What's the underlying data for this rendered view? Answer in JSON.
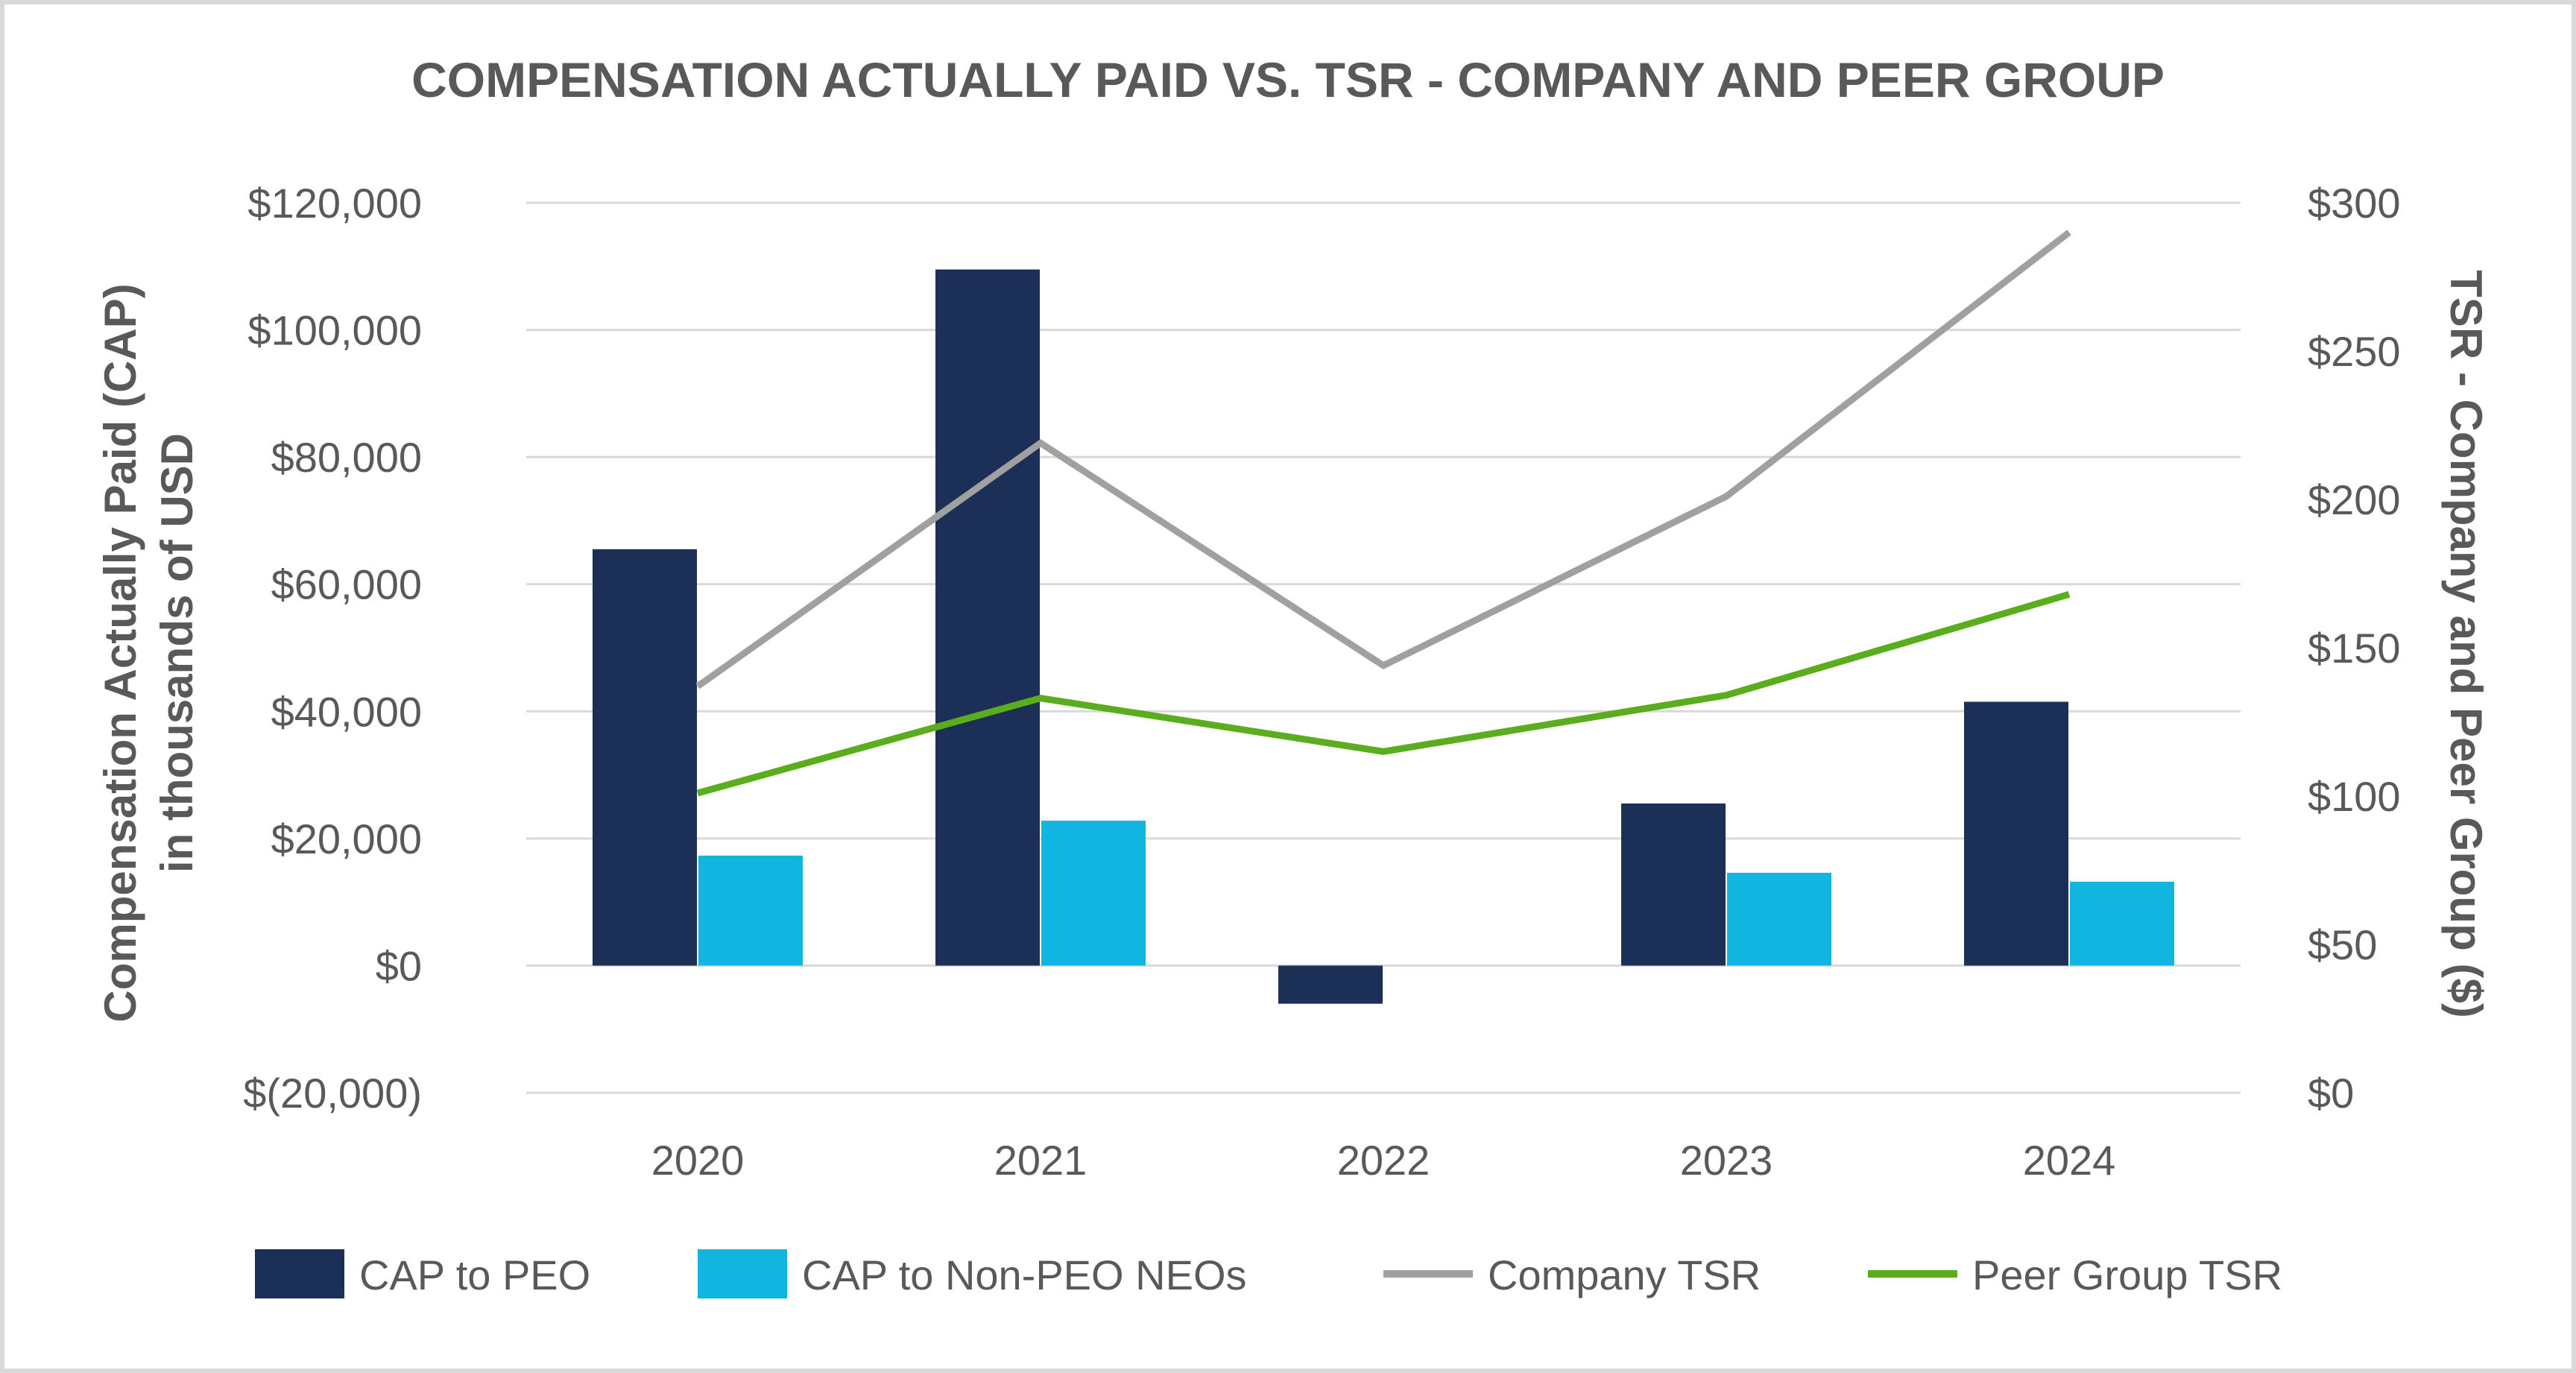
{
  "chart_data": {
    "type": "bar",
    "title": "COMPENSATION ACTUALLY PAID VS. TSR - COMPANY AND PEER GROUP",
    "categories": [
      "2020",
      "2021",
      "2022",
      "2023",
      "2024"
    ],
    "y_left": {
      "label_line1": "Compensation Actually Paid (CAP)",
      "label_line2": "in thousands of USD",
      "ylim": [
        -20000,
        120000
      ],
      "ticks": [
        -20000,
        0,
        20000,
        40000,
        60000,
        80000,
        100000,
        120000
      ],
      "tick_labels": [
        "$(20,000)",
        "$0",
        "$20,000",
        "$40,000",
        "$60,000",
        "$80,000",
        "$100,000",
        "$120,000"
      ]
    },
    "y_right": {
      "label": "TSR - Company and Peer Group ($)",
      "ylim": [
        0,
        300
      ],
      "ticks": [
        0,
        50,
        100,
        150,
        200,
        250,
        300
      ],
      "tick_labels": [
        "$0",
        "$50",
        "$100",
        "$150",
        "$200",
        "$250",
        "$300"
      ]
    },
    "bar_series": [
      {
        "name": "CAP to PEO",
        "color": "#1b2f57",
        "values": [
          65500,
          109500,
          -6000,
          25500,
          41500
        ]
      },
      {
        "name": "CAP to Non-PEO NEOs",
        "color": "#12b5e0",
        "values": [
          17300,
          22800,
          0,
          14600,
          13200
        ]
      }
    ],
    "line_series": [
      {
        "name": "Company TSR",
        "color": "#a0a0a0",
        "axis": "right",
        "values": [
          137,
          219,
          144,
          201,
          290
        ]
      },
      {
        "name": "Peer Group TSR",
        "color": "#5aae1e",
        "axis": "right",
        "values": [
          101,
          133,
          115,
          134,
          168
        ]
      }
    ],
    "grid": true,
    "legend_position": "bottom"
  }
}
